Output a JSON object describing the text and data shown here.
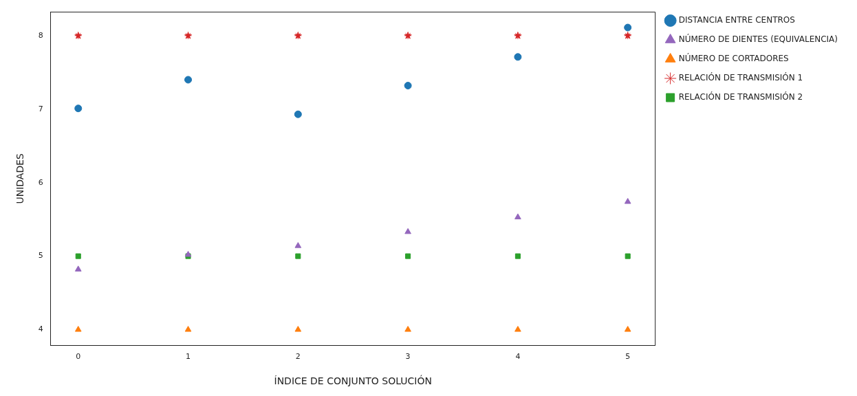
{
  "chart_data": {
    "type": "scatter",
    "xlabel": "ÍNDICE DE CONJUNTO SOLUCIÓN",
    "ylabel": "UNIDADES",
    "x": [
      0,
      1,
      2,
      3,
      4,
      5
    ],
    "series": [
      {
        "name": "DISTANCIA ENTRE CENTROS",
        "color": "#1f77b4",
        "marker": "circle",
        "values": [
          7.01,
          7.4,
          6.93,
          7.32,
          7.71,
          8.11
        ]
      },
      {
        "name": "NÚMERO DE DIENTES (EQUIVALENCIA)",
        "color": "#9467bd",
        "marker": "triangle",
        "values": [
          4.82,
          5.02,
          5.14,
          5.33,
          5.53,
          5.74
        ]
      },
      {
        "name": "NÚMERO DE CORTADORES",
        "color": "#ff7f0e",
        "marker": "triangle",
        "values": [
          4,
          4,
          4,
          4,
          4,
          4
        ]
      },
      {
        "name": "RELACIÓN DE TRANSMISIÓN 1",
        "color": "#d62728",
        "marker": "star",
        "values": [
          8,
          8,
          8,
          8,
          8,
          8
        ]
      },
      {
        "name": "RELACIÓN DE TRANSMISIÓN 2",
        "color": "#2ca02c",
        "marker": "square",
        "values": [
          5,
          5,
          5,
          5,
          5,
          5
        ]
      }
    ],
    "xlim": [
      -0.25,
      5.25
    ],
    "xticks": [
      0,
      1,
      2,
      3,
      4,
      5
    ],
    "ylim": [
      3.79,
      8.32
    ],
    "yticks": [
      4,
      5,
      6,
      7,
      8
    ],
    "grid": false,
    "legend": "right"
  }
}
